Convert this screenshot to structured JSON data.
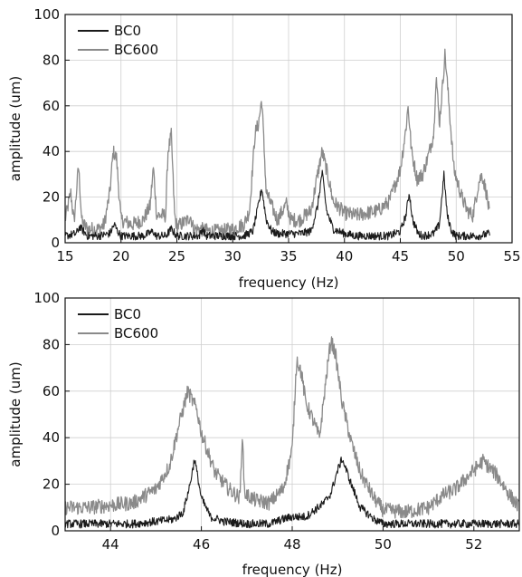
{
  "chart_data": [
    {
      "type": "line",
      "title": "",
      "xlabel": "frequency (Hz)",
      "ylabel": "amplitude (um)",
      "xlim": [
        15,
        55
      ],
      "ylim": [
        0,
        100
      ],
      "xticks": [
        15,
        20,
        25,
        30,
        35,
        40,
        45,
        50,
        55
      ],
      "yticks": [
        0,
        20,
        40,
        60,
        80,
        100
      ],
      "grid": true,
      "legend_position": "top-left",
      "series": [
        {
          "name": "BC0",
          "color": "#1a1a1a",
          "points": [
            [
              15,
              3
            ],
            [
              16,
              4
            ],
            [
              16.3,
              7
            ],
            [
              17,
              3
            ],
            [
              18,
              3
            ],
            [
              19,
              4
            ],
            [
              19.4,
              8
            ],
            [
              19.7,
              5
            ],
            [
              20,
              3
            ],
            [
              21,
              3
            ],
            [
              22,
              3
            ],
            [
              22.9,
              5
            ],
            [
              23.1,
              3
            ],
            [
              24,
              3
            ],
            [
              24.5,
              6
            ],
            [
              25,
              3
            ],
            [
              26,
              3
            ],
            [
              27,
              3
            ],
            [
              27.3,
              6
            ],
            [
              27.6,
              3
            ],
            [
              28,
              3
            ],
            [
              29,
              3
            ],
            [
              30,
              3
            ],
            [
              31,
              3
            ],
            [
              31.8,
              5
            ],
            [
              32.2,
              14
            ],
            [
              32.6,
              24
            ],
            [
              33,
              10
            ],
            [
              33.5,
              5
            ],
            [
              34,
              4
            ],
            [
              35,
              4
            ],
            [
              36,
              4
            ],
            [
              37,
              5
            ],
            [
              37.6,
              16
            ],
            [
              38,
              31
            ],
            [
              38.4,
              14
            ],
            [
              39,
              6
            ],
            [
              40,
              4
            ],
            [
              41,
              3
            ],
            [
              42,
              3
            ],
            [
              43,
              3
            ],
            [
              44,
              3
            ],
            [
              45,
              5
            ],
            [
              45.5,
              12
            ],
            [
              45.8,
              22
            ],
            [
              46.1,
              10
            ],
            [
              46.6,
              4
            ],
            [
              47,
              3
            ],
            [
              48,
              4
            ],
            [
              48.5,
              8
            ],
            [
              48.9,
              30
            ],
            [
              49.2,
              12
            ],
            [
              49.6,
              5
            ],
            [
              50,
              3
            ],
            [
              51,
              3
            ],
            [
              52,
              3
            ],
            [
              53,
              4
            ]
          ]
        },
        {
          "name": "BC600",
          "color": "#8a8a8a",
          "points": [
            [
              15,
              10
            ],
            [
              15.5,
              22
            ],
            [
              15.8,
              9
            ],
            [
              16.2,
              34
            ],
            [
              16.5,
              9
            ],
            [
              17,
              6
            ],
            [
              18,
              6
            ],
            [
              18.5,
              8
            ],
            [
              19,
              22
            ],
            [
              19.3,
              40
            ],
            [
              19.6,
              37
            ],
            [
              20,
              10
            ],
            [
              21,
              8
            ],
            [
              22,
              10
            ],
            [
              22.6,
              16
            ],
            [
              22.9,
              33
            ],
            [
              23.2,
              12
            ],
            [
              24,
              12
            ],
            [
              24.2,
              40
            ],
            [
              24.5,
              47
            ],
            [
              24.8,
              12
            ],
            [
              25,
              7
            ],
            [
              26,
              10
            ],
            [
              26.2,
              12
            ],
            [
              26.5,
              6
            ],
            [
              27,
              6
            ],
            [
              28,
              5
            ],
            [
              29,
              5
            ],
            [
              30,
              6
            ],
            [
              31,
              8
            ],
            [
              31.5,
              14
            ],
            [
              32,
              48
            ],
            [
              32.3,
              52
            ],
            [
              32.6,
              63
            ],
            [
              33,
              22
            ],
            [
              34,
              10
            ],
            [
              34.8,
              17
            ],
            [
              35.2,
              10
            ],
            [
              36,
              10
            ],
            [
              37,
              14
            ],
            [
              37.6,
              30
            ],
            [
              38,
              40
            ],
            [
              38.4,
              32
            ],
            [
              39,
              18
            ],
            [
              40,
              13
            ],
            [
              41,
              12
            ],
            [
              42,
              13
            ],
            [
              43,
              14
            ],
            [
              44,
              18
            ],
            [
              45,
              32
            ],
            [
              45.5,
              50
            ],
            [
              45.7,
              60
            ],
            [
              46,
              40
            ],
            [
              46.5,
              28
            ],
            [
              47,
              30
            ],
            [
              47.5,
              38
            ],
            [
              48,
              48
            ],
            [
              48.2,
              74
            ],
            [
              48.5,
              52
            ],
            [
              48.8,
              70
            ],
            [
              49,
              83
            ],
            [
              49.3,
              64
            ],
            [
              49.8,
              32
            ],
            [
              50.5,
              20
            ],
            [
              51,
              14
            ],
            [
              51.5,
              12
            ],
            [
              52,
              26
            ],
            [
              52.3,
              30
            ],
            [
              52.7,
              22
            ],
            [
              53,
              12
            ]
          ]
        }
      ]
    },
    {
      "type": "line",
      "title": "",
      "xlabel": "frequency (Hz)",
      "ylabel": "amplitude (um)",
      "xlim": [
        43,
        53
      ],
      "ylim": [
        0,
        100
      ],
      "xticks": [
        44,
        46,
        48,
        50,
        52
      ],
      "yticks": [
        0,
        20,
        40,
        60,
        80,
        100
      ],
      "grid": true,
      "legend_position": "top-left",
      "series": [
        {
          "name": "BC0",
          "color": "#1a1a1a",
          "points": [
            [
              43,
              3
            ],
            [
              43.5,
              3
            ],
            [
              44,
              3
            ],
            [
              44.5,
              3
            ],
            [
              45,
              4
            ],
            [
              45.4,
              5
            ],
            [
              45.6,
              8
            ],
            [
              45.75,
              20
            ],
            [
              45.85,
              31
            ],
            [
              46,
              14
            ],
            [
              46.2,
              6
            ],
            [
              46.5,
              4
            ],
            [
              47,
              3
            ],
            [
              47.5,
              3
            ],
            [
              47.8,
              5
            ],
            [
              48,
              6
            ],
            [
              48.3,
              6
            ],
            [
              48.5,
              9
            ],
            [
              48.7,
              12
            ],
            [
              48.85,
              16
            ],
            [
              49,
              26
            ],
            [
              49.1,
              31
            ],
            [
              49.3,
              20
            ],
            [
              49.5,
              10
            ],
            [
              49.8,
              5
            ],
            [
              50,
              3
            ],
            [
              50.5,
              3
            ],
            [
              51,
              3
            ],
            [
              51.5,
              3
            ],
            [
              52,
              3
            ],
            [
              52.5,
              3
            ],
            [
              53,
              3
            ]
          ]
        },
        {
          "name": "BC600",
          "color": "#8a8a8a",
          "points": [
            [
              43,
              10
            ],
            [
              43.5,
              10
            ],
            [
              44,
              11
            ],
            [
              44.5,
              12
            ],
            [
              45,
              18
            ],
            [
              45.3,
              28
            ],
            [
              45.5,
              45
            ],
            [
              45.7,
              60
            ],
            [
              45.9,
              52
            ],
            [
              46,
              42
            ],
            [
              46.3,
              25
            ],
            [
              46.6,
              18
            ],
            [
              46.85,
              14
            ],
            [
              46.9,
              42
            ],
            [
              46.95,
              16
            ],
            [
              47.2,
              13
            ],
            [
              47.5,
              12
            ],
            [
              47.8,
              18
            ],
            [
              48,
              35
            ],
            [
              48.1,
              74
            ],
            [
              48.2,
              68
            ],
            [
              48.3,
              55
            ],
            [
              48.45,
              48
            ],
            [
              48.6,
              40
            ],
            [
              48.75,
              66
            ],
            [
              48.85,
              82
            ],
            [
              48.95,
              76
            ],
            [
              49.1,
              55
            ],
            [
              49.3,
              38
            ],
            [
              49.5,
              25
            ],
            [
              49.8,
              14
            ],
            [
              50,
              9
            ],
            [
              50.5,
              8
            ],
            [
              51,
              10
            ],
            [
              51.3,
              15
            ],
            [
              51.6,
              18
            ],
            [
              52,
              26
            ],
            [
              52.2,
              30
            ],
            [
              52.5,
              24
            ],
            [
              52.8,
              15
            ],
            [
              53,
              10
            ]
          ]
        }
      ]
    }
  ]
}
